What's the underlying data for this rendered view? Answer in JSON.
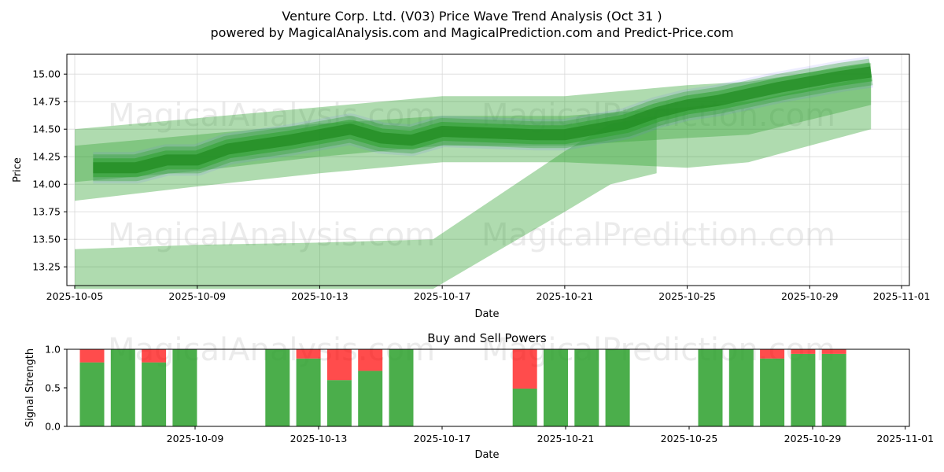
{
  "title_line1": "Venture Corp. Ltd. (V03) Price Wave Trend Analysis (Oct 31 )",
  "title_line2": "powered by MagicalAnalysis.com and MagicalPrediction.com and Predict-Price.com",
  "watermarks": [
    "MagicalAnalysis.com",
    "MagicalPrediction.com"
  ],
  "colors": {
    "band": "#2ca02c",
    "band_blue": "#6b6bff",
    "buy": "#2ca02c",
    "sell": "#ff0000",
    "grid": "#d9d9d9"
  },
  "chart_data": [
    {
      "type": "area",
      "title": "",
      "xlabel": "Date",
      "ylabel": "Price",
      "x_range": [
        "2025-10-05",
        "2025-11-01"
      ],
      "ylim": [
        13.08,
        15.18
      ],
      "grid": true,
      "x_ticks": [
        "2025-10-05",
        "2025-10-09",
        "2025-10-13",
        "2025-10-17",
        "2025-10-21",
        "2025-10-25",
        "2025-10-29",
        "2025-11-01"
      ],
      "y_ticks": [
        "13.25",
        "13.50",
        "13.75",
        "14.00",
        "14.25",
        "14.50",
        "14.75",
        "15.00"
      ],
      "series": [
        {
          "name": "wide-upper-band",
          "x": [
            "2025-10-05",
            "2025-10-09",
            "2025-10-13",
            "2025-10-17",
            "2025-10-21",
            "2025-10-25",
            "2025-10-27",
            "2025-10-31"
          ],
          "upper": [
            14.5,
            14.6,
            14.7,
            14.8,
            14.8,
            14.9,
            14.93,
            15.1
          ],
          "lower": [
            13.85,
            13.98,
            14.1,
            14.2,
            14.2,
            14.15,
            14.2,
            14.5
          ]
        },
        {
          "name": "mid-band",
          "x": [
            "2025-10-05",
            "2025-10-09",
            "2025-10-13",
            "2025-10-17",
            "2025-10-21",
            "2025-10-25",
            "2025-10-27",
            "2025-10-31"
          ],
          "upper": [
            14.35,
            14.45,
            14.55,
            14.62,
            14.62,
            14.7,
            14.75,
            14.98
          ],
          "lower": [
            14.02,
            14.12,
            14.25,
            14.35,
            14.35,
            14.42,
            14.45,
            14.72
          ]
        },
        {
          "name": "low-band",
          "x": [
            "2025-10-05",
            "2025-10-09",
            "2025-10-13",
            "2025-10-16.7",
            "2025-10-21",
            "2025-10-22.5",
            "2025-10-24"
          ],
          "upper": [
            13.41,
            13.45,
            13.47,
            13.5,
            14.3,
            14.55,
            14.62
          ],
          "lower": [
            13.05,
            13.05,
            13.05,
            13.05,
            13.75,
            14.0,
            14.1
          ]
        },
        {
          "name": "core-trend",
          "x": [
            "2025-10-05.6",
            "2025-10-07",
            "2025-10-08",
            "2025-10-09",
            "2025-10-10",
            "2025-10-11",
            "2025-10-12",
            "2025-10-13",
            "2025-10-14",
            "2025-10-15",
            "2025-10-16",
            "2025-10-17",
            "2025-10-18",
            "2025-10-19",
            "2025-10-20",
            "2025-10-21",
            "2025-10-22",
            "2025-10-23",
            "2025-10-24",
            "2025-10-25",
            "2025-10-26",
            "2025-10-27",
            "2025-10-28",
            "2025-10-29",
            "2025-10-30",
            "2025-10-31"
          ],
          "value": [
            14.15,
            14.15,
            14.22,
            14.22,
            14.32,
            14.36,
            14.4,
            14.45,
            14.5,
            14.42,
            14.4,
            14.48,
            14.47,
            14.46,
            14.45,
            14.45,
            14.5,
            14.55,
            14.65,
            14.72,
            14.76,
            14.82,
            14.88,
            14.93,
            14.98,
            15.02
          ]
        }
      ]
    },
    {
      "type": "bar",
      "title": "Buy and Sell Powers",
      "xlabel": "Date",
      "ylabel": "Signal Strength",
      "ylim": [
        0,
        1
      ],
      "x_range": [
        "2025-10-05",
        "2025-11-01"
      ],
      "x_ticks": [
        "2025-10-09",
        "2025-10-13",
        "2025-10-17",
        "2025-10-21",
        "2025-10-25",
        "2025-10-29",
        "2025-11-01"
      ],
      "y_ticks": [
        "0.0",
        "0.5",
        "1.0"
      ],
      "series": [
        {
          "name": "Buy",
          "dates": [
            "2025-10-06",
            "2025-10-07",
            "2025-10-08",
            "2025-10-09",
            "2025-10-12",
            "2025-10-13",
            "2025-10-14",
            "2025-10-15",
            "2025-10-16",
            "2025-10-20",
            "2025-10-21",
            "2025-10-22",
            "2025-10-23",
            "2025-10-26",
            "2025-10-27",
            "2025-10-28",
            "2025-10-29",
            "2025-10-30"
          ],
          "values": [
            0.83,
            1.0,
            0.83,
            1.0,
            1.0,
            0.88,
            0.6,
            0.72,
            1.0,
            0.49,
            1.0,
            1.0,
            1.0,
            1.0,
            1.0,
            0.88,
            0.94,
            0.94
          ]
        },
        {
          "name": "Sell",
          "dates": [
            "2025-10-06",
            "2025-10-07",
            "2025-10-08",
            "2025-10-09",
            "2025-10-12",
            "2025-10-13",
            "2025-10-14",
            "2025-10-15",
            "2025-10-16",
            "2025-10-20",
            "2025-10-21",
            "2025-10-22",
            "2025-10-23",
            "2025-10-26",
            "2025-10-27",
            "2025-10-28",
            "2025-10-29",
            "2025-10-30"
          ],
          "values": [
            0.17,
            0.0,
            0.17,
            0.0,
            0.0,
            0.12,
            0.4,
            0.28,
            0.0,
            0.51,
            0.0,
            0.0,
            0.0,
            0.0,
            0.0,
            0.12,
            0.06,
            0.06
          ]
        }
      ]
    }
  ]
}
